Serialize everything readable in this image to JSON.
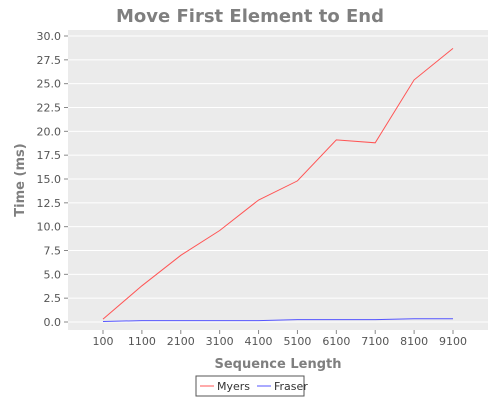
{
  "chart_data": {
    "type": "line",
    "title": "Move First Element to End",
    "xlabel": "Sequence Length",
    "ylabel": "Time (ms)",
    "categories": [
      "100",
      "1100",
      "2100",
      "3100",
      "4100",
      "5100",
      "6100",
      "7100",
      "8100",
      "9100"
    ],
    "ylim": [
      0,
      30
    ],
    "yticks": [
      "0.0",
      "2.5",
      "5.0",
      "7.5",
      "10.0",
      "12.5",
      "15.0",
      "17.5",
      "20.0",
      "22.5",
      "25.0",
      "27.5",
      "30.0"
    ],
    "grid": true,
    "legend_position": "bottom",
    "series": [
      {
        "name": "Myers",
        "color": "#ff5555",
        "values": [
          0.3,
          3.8,
          7.0,
          9.6,
          12.8,
          14.8,
          19.1,
          18.8,
          25.4,
          28.7
        ]
      },
      {
        "name": "Fraser",
        "color": "#5555ff",
        "values": [
          0.05,
          0.15,
          0.15,
          0.15,
          0.15,
          0.25,
          0.25,
          0.25,
          0.35,
          0.35
        ]
      }
    ]
  }
}
